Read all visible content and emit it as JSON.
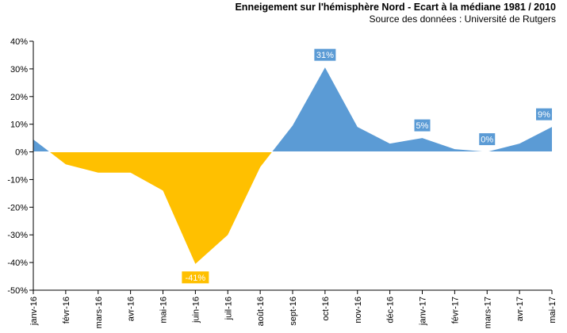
{
  "chart_data": {
    "type": "area",
    "title": "Enneigement sur l'hémisphère Nord - Ecart à la médiane 1981 / 2010",
    "subtitle": "Source des données : Université de Rutgers",
    "categories": [
      "janv-16",
      "févr-16",
      "mars-16",
      "avr-16",
      "mai-16",
      "juin-16",
      "juil-16",
      "août-16",
      "sept-16",
      "oct-16",
      "nov-16",
      "déc-16",
      "janv-17",
      "févr-17",
      "mars-17",
      "avr-17",
      "mai-17"
    ],
    "x": [
      0,
      1,
      2,
      3,
      4,
      5,
      6,
      7,
      8,
      9,
      10,
      11,
      12,
      13,
      14,
      15,
      16
    ],
    "values": [
      4.5,
      -4.5,
      -7.5,
      -7.5,
      -14,
      -40.5,
      -30,
      -5.5,
      9.5,
      30.5,
      9,
      3,
      5,
      1,
      0,
      3,
      9
    ],
    "ylim": [
      -50,
      40
    ],
    "yticks": [
      -50,
      -40,
      -30,
      -20,
      -10,
      0,
      10,
      20,
      30,
      40
    ],
    "ytick_labels": [
      "-50%",
      "-40%",
      "-30%",
      "-20%",
      "-10%",
      "0%",
      "10%",
      "20%",
      "30%",
      "40%"
    ],
    "colors": {
      "positive": "#5b9bd5",
      "negative": "#ffc000",
      "zero_line": "#ffffff"
    },
    "data_labels": [
      {
        "index": 5,
        "text": "-41%",
        "color": "#ffc000",
        "side": "below"
      },
      {
        "index": 9,
        "text": "31%",
        "color": "#5b9bd5",
        "side": "above"
      },
      {
        "index": 12,
        "text": "5%",
        "color": "#5b9bd5",
        "side": "above"
      },
      {
        "index": 14,
        "text": "0%",
        "color": "#5b9bd5",
        "side": "above"
      },
      {
        "index": 16,
        "text": "9%",
        "color": "#5b9bd5",
        "side": "above"
      }
    ],
    "grid": false,
    "legend": "none"
  }
}
